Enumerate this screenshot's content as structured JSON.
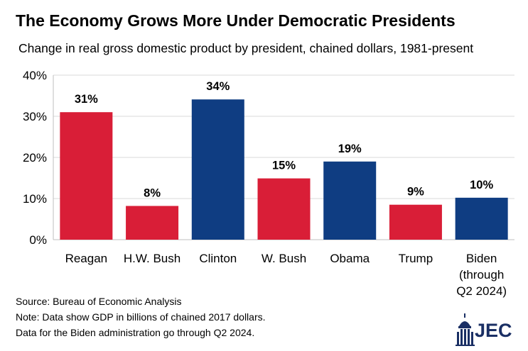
{
  "header": {
    "title": "The Economy Grows More Under Democratic Presidents",
    "subtitle": "Change in real gross domestic product by president, chained dollars, 1981-present"
  },
  "chart_data": {
    "type": "bar",
    "title": "The Economy Grows More Under Democratic Presidents",
    "subtitle": "Change in real gross domestic product by president, chained dollars, 1981-present",
    "xlabel": "",
    "ylabel": "",
    "ylim": [
      0,
      40
    ],
    "yticks": [
      "0%",
      "10%",
      "20%",
      "30%",
      "40%"
    ],
    "grid": true,
    "categories": [
      [
        "Reagan"
      ],
      [
        "H.W. Bush"
      ],
      [
        "Clinton"
      ],
      [
        "W. Bush"
      ],
      [
        "Obama"
      ],
      [
        "Trump"
      ],
      [
        "Biden",
        "(through",
        "Q2 2024)"
      ]
    ],
    "values": [
      31,
      8.2,
      34.1,
      14.9,
      19,
      8.5,
      10.2
    ],
    "data_labels": [
      "31%",
      "8%",
      "34%",
      "15%",
      "19%",
      "9%",
      "10%"
    ],
    "party_colors": [
      "#d91e37",
      "#d91e37",
      "#0f3d82",
      "#d91e37",
      "#0f3d82",
      "#d91e37",
      "#0f3d82"
    ]
  },
  "footer": {
    "source": "Source: Bureau of Economic Analysis",
    "note": "Note: Data show GDP in billions of chained 2017 dollars.",
    "note2": "Data for the Biden administration go through Q2 2024.",
    "logo_text": "JEC"
  },
  "colors": {
    "republican": "#d91e37",
    "democrat": "#0f3d82",
    "logo": "#1a2f64",
    "grid": "#d9d9d9"
  }
}
